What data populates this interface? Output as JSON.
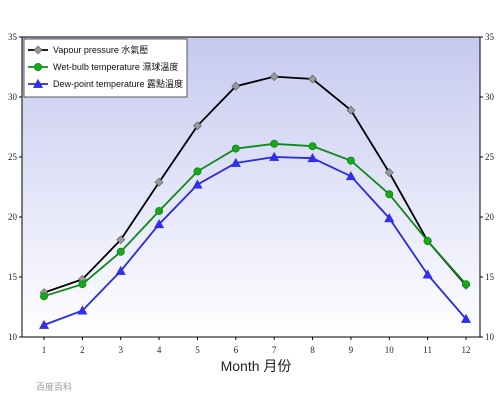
{
  "chart_data": {
    "type": "line",
    "x": [
      1,
      2,
      3,
      4,
      5,
      6,
      7,
      8,
      9,
      10,
      11,
      12
    ],
    "xlabel": "Month 月份",
    "ylim": [
      10,
      35
    ],
    "yticks": [
      10,
      15,
      20,
      25,
      30,
      35
    ],
    "grid": false,
    "legend_position": "top-left",
    "series": [
      {
        "name": "Vapour pressure 水氣壓",
        "color": "#000000",
        "marker": "diamond",
        "marker_color": "#9a9a9a",
        "values": [
          13.7,
          14.8,
          18.1,
          22.9,
          27.6,
          30.9,
          31.7,
          31.5,
          28.9,
          23.7,
          18.0,
          14.3
        ]
      },
      {
        "name": "Wet-bulb temperature 濕球溫度",
        "color": "#0a8a1a",
        "marker": "circle",
        "marker_color": "#1aa81a",
        "values": [
          13.4,
          14.4,
          17.1,
          20.5,
          23.8,
          25.7,
          26.1,
          25.9,
          24.7,
          21.9,
          18.0,
          14.4
        ]
      },
      {
        "name": "Dew-point temperature 露點溫度",
        "color": "#2a2ae0",
        "marker": "triangle",
        "marker_color": "#3030ee",
        "values": [
          11.0,
          12.2,
          15.5,
          19.4,
          22.7,
          24.5,
          25.0,
          24.9,
          23.4,
          19.9,
          15.2,
          11.5
        ]
      }
    ]
  },
  "watermark": {
    "text": "百度百科"
  }
}
